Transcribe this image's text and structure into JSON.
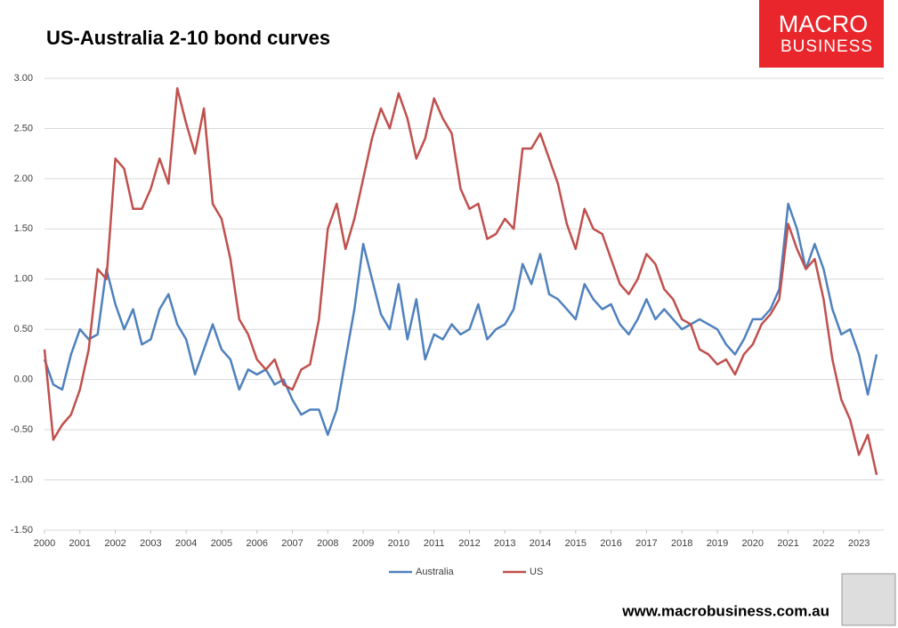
{
  "chart_data": {
    "type": "line",
    "title": "US-Australia 2-10 bond curves",
    "logo": [
      "MACRO",
      "BUSINESS"
    ],
    "source": "www.macrobusiness.com.au",
    "x": [
      2000,
      2000.25,
      2000.5,
      2000.75,
      2001,
      2001.25,
      2001.5,
      2001.75,
      2002,
      2002.25,
      2002.5,
      2002.75,
      2003,
      2003.25,
      2003.5,
      2003.75,
      2004,
      2004.25,
      2004.5,
      2004.75,
      2005,
      2005.25,
      2005.5,
      2005.75,
      2006,
      2006.25,
      2006.5,
      2006.75,
      2007,
      2007.25,
      2007.5,
      2007.75,
      2008,
      2008.25,
      2008.5,
      2008.75,
      2009,
      2009.25,
      2009.5,
      2009.75,
      2010,
      2010.25,
      2010.5,
      2010.75,
      2011,
      2011.25,
      2011.5,
      2011.75,
      2012,
      2012.25,
      2012.5,
      2012.75,
      2013,
      2013.25,
      2013.5,
      2013.75,
      2014,
      2014.25,
      2014.5,
      2014.75,
      2015,
      2015.25,
      2015.5,
      2015.75,
      2016,
      2016.25,
      2016.5,
      2016.75,
      2017,
      2017.25,
      2017.5,
      2017.75,
      2018,
      2018.25,
      2018.5,
      2018.75,
      2019,
      2019.25,
      2019.5,
      2019.75,
      2020,
      2020.25,
      2020.5,
      2020.75,
      2021,
      2021.25,
      2021.5,
      2021.75,
      2022,
      2022.25,
      2022.5,
      2022.75,
      2023,
      2023.25,
      2023.5
    ],
    "series": [
      {
        "name": "Australia",
        "color": "#4f81bd",
        "values": [
          0.2,
          -0.05,
          -0.1,
          0.25,
          0.5,
          0.4,
          0.45,
          1.1,
          0.75,
          0.5,
          0.7,
          0.35,
          0.4,
          0.7,
          0.85,
          0.55,
          0.4,
          0.05,
          0.3,
          0.55,
          0.3,
          0.2,
          -0.1,
          0.1,
          0.05,
          0.1,
          -0.05,
          0.0,
          -0.2,
          -0.35,
          -0.3,
          -0.3,
          -0.55,
          -0.3,
          0.2,
          0.7,
          1.35,
          1.0,
          0.65,
          0.5,
          0.95,
          0.4,
          0.8,
          0.2,
          0.45,
          0.4,
          0.55,
          0.45,
          0.5,
          0.75,
          0.4,
          0.5,
          0.55,
          0.7,
          1.15,
          0.95,
          1.25,
          0.85,
          0.8,
          0.7,
          0.6,
          0.95,
          0.8,
          0.7,
          0.75,
          0.55,
          0.45,
          0.6,
          0.8,
          0.6,
          0.7,
          0.6,
          0.5,
          0.55,
          0.6,
          0.55,
          0.5,
          0.35,
          0.25,
          0.4,
          0.6,
          0.6,
          0.7,
          0.9,
          1.75,
          1.5,
          1.1,
          1.35,
          1.1,
          0.7,
          0.45,
          0.5,
          0.25,
          -0.15,
          0.25
        ]
      },
      {
        "name": "US",
        "color": "#c0504d",
        "values": [
          0.3,
          -0.6,
          -0.45,
          -0.35,
          -0.1,
          0.3,
          1.1,
          1.0,
          2.2,
          2.1,
          1.7,
          1.7,
          1.9,
          2.2,
          1.95,
          2.9,
          2.55,
          2.25,
          2.7,
          1.75,
          1.6,
          1.2,
          0.6,
          0.45,
          0.2,
          0.1,
          0.2,
          -0.05,
          -0.1,
          0.1,
          0.15,
          0.6,
          1.5,
          1.75,
          1.3,
          1.6,
          2.0,
          2.4,
          2.7,
          2.5,
          2.85,
          2.6,
          2.2,
          2.4,
          2.8,
          2.6,
          2.45,
          1.9,
          1.7,
          1.75,
          1.4,
          1.45,
          1.6,
          1.5,
          2.3,
          2.3,
          2.45,
          2.2,
          1.95,
          1.55,
          1.3,
          1.7,
          1.5,
          1.45,
          1.2,
          0.95,
          0.85,
          1.0,
          1.25,
          1.15,
          0.9,
          0.8,
          0.6,
          0.55,
          0.3,
          0.25,
          0.15,
          0.2,
          0.05,
          0.25,
          0.35,
          0.55,
          0.65,
          0.8,
          1.55,
          1.3,
          1.1,
          1.2,
          0.8,
          0.2,
          -0.2,
          -0.4,
          -0.75,
          -0.55,
          -0.95
        ]
      }
    ],
    "xlim": [
      2000,
      2023.7
    ],
    "xticks": [
      2000,
      2001,
      2002,
      2003,
      2004,
      2005,
      2006,
      2007,
      2008,
      2009,
      2010,
      2011,
      2012,
      2013,
      2014,
      2015,
      2016,
      2017,
      2018,
      2019,
      2020,
      2021,
      2022,
      2023
    ],
    "ylim": [
      -1.5,
      3.0
    ],
    "yticks": [
      {
        "value": -1.5,
        "label": "-1.50"
      },
      {
        "value": -1.0,
        "label": "-1.00"
      },
      {
        "value": -0.5,
        "label": "-0.50"
      },
      {
        "value": 0,
        "label": "0.00"
      },
      {
        "value": 0.5,
        "label": "0.50"
      },
      {
        "value": 1.0,
        "label": "1.00"
      },
      {
        "value": 1.5,
        "label": "1.50"
      },
      {
        "value": 2.0,
        "label": "2.00"
      },
      {
        "value": 2.5,
        "label": "2.50"
      },
      {
        "value": 3.0,
        "label": "3.00"
      }
    ],
    "grid": true,
    "legend": "bottom"
  }
}
